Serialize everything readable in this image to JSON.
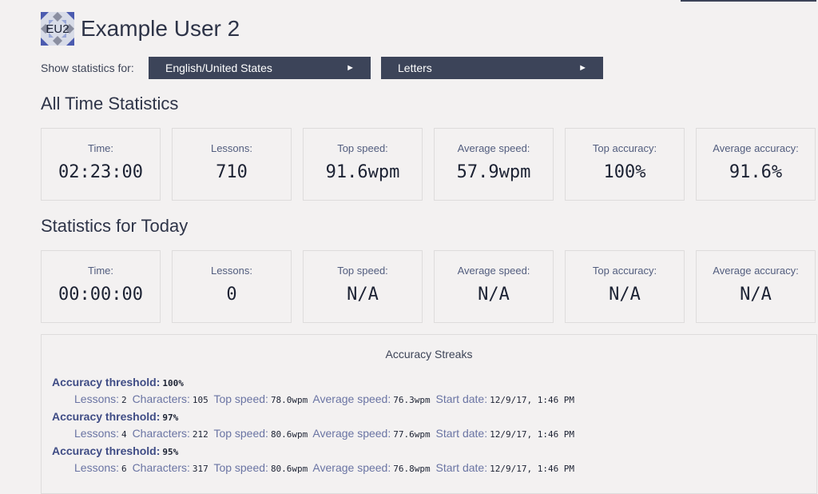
{
  "user": {
    "initials": "EU2",
    "name": "Example User 2"
  },
  "filters": {
    "label": "Show statistics for:",
    "language": "English/United States",
    "mode": "Letters",
    "arrow": "►"
  },
  "all_time": {
    "title": "All Time Statistics",
    "cards": [
      {
        "label": "Time:",
        "value": "02:23:00"
      },
      {
        "label": "Lessons:",
        "value": "710"
      },
      {
        "label": "Top speed:",
        "value": "91.6wpm"
      },
      {
        "label": "Average speed:",
        "value": "57.9wpm"
      },
      {
        "label": "Top accuracy:",
        "value": "100%"
      },
      {
        "label": "Average accuracy:",
        "value": "91.6%"
      }
    ]
  },
  "today": {
    "title": "Statistics for Today",
    "cards": [
      {
        "label": "Time:",
        "value": "00:00:00"
      },
      {
        "label": "Lessons:",
        "value": "0"
      },
      {
        "label": "Top speed:",
        "value": "N/A"
      },
      {
        "label": "Average speed:",
        "value": "N/A"
      },
      {
        "label": "Top accuracy:",
        "value": "N/A"
      },
      {
        "label": "Average accuracy:",
        "value": "N/A"
      }
    ]
  },
  "streaks": {
    "title": "Accuracy Streaks",
    "threshold_label": "Accuracy threshold:",
    "labels": {
      "lessons": "Lessons:",
      "characters": "Characters:",
      "top_speed": "Top speed:",
      "average_speed": "Average speed:",
      "start_date": "Start date:"
    },
    "items": [
      {
        "threshold": "100%",
        "lessons": "2",
        "characters": "105",
        "top_speed": "78.0wpm",
        "average_speed": "76.3wpm",
        "start_date": "12/9/17, 1:46 PM"
      },
      {
        "threshold": "97%",
        "lessons": "4",
        "characters": "212",
        "top_speed": "80.6wpm",
        "average_speed": "77.6wpm",
        "start_date": "12/9/17, 1:46 PM"
      },
      {
        "threshold": "95%",
        "lessons": "6",
        "characters": "317",
        "top_speed": "80.6wpm",
        "average_speed": "76.8wpm",
        "start_date": "12/9/17, 1:46 PM"
      }
    ]
  }
}
